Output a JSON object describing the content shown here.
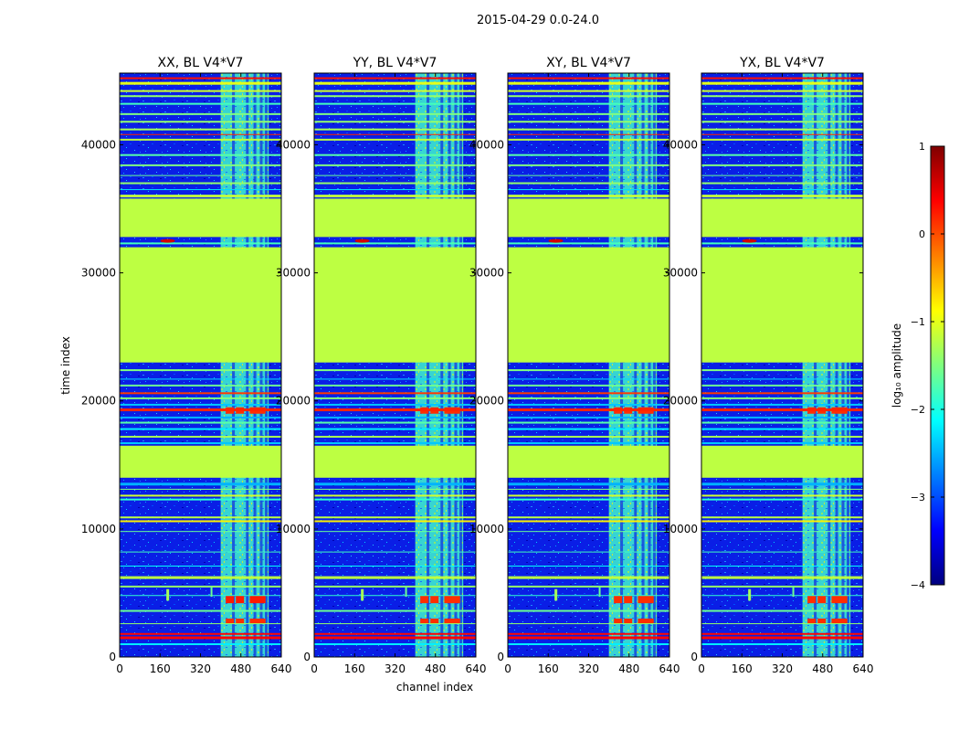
{
  "chart_data": {
    "type": "heatmap",
    "suptitle": "2015-04-29 0.0-24.0",
    "xlabel": "channel index",
    "ylabel": "time index",
    "xlim": [
      0,
      640
    ],
    "ylim": [
      0,
      45600
    ],
    "xticks": [
      0,
      160,
      320,
      480,
      640
    ],
    "yticks": [
      0,
      10000,
      20000,
      30000,
      40000
    ],
    "colorbar": {
      "label": "log₁₀ amplitude",
      "range": [
        -4,
        1
      ],
      "ticks": [
        -4,
        -3,
        -2,
        -1,
        0,
        1
      ],
      "colormap": "jet",
      "stops": [
        "#00007f",
        "#0000ff",
        "#007fff",
        "#00ffff",
        "#7fff7f",
        "#ffff00",
        "#ff7f00",
        "#ff0000",
        "#7f0000"
      ]
    },
    "panels": [
      {
        "title": "XX, BL V4*V7"
      },
      {
        "title": "YY, BL V4*V7"
      },
      {
        "title": "XY, BL V4*V7"
      },
      {
        "title": "YX, BL V4*V7"
      }
    ],
    "regions": [
      {
        "name": "flagged block",
        "t_start": 23000,
        "t_end": 32000,
        "log_amp": -1.2
      },
      {
        "name": "flagged block",
        "t_start": 32800,
        "t_end": 35800,
        "log_amp": -1.2
      },
      {
        "name": "flagged block",
        "t_start": 14000,
        "t_end": 16500,
        "log_amp": -1.2
      },
      {
        "name": "RFI band",
        "ch_start": 400,
        "ch_end": 590,
        "log_amp": -1.5
      }
    ]
  }
}
